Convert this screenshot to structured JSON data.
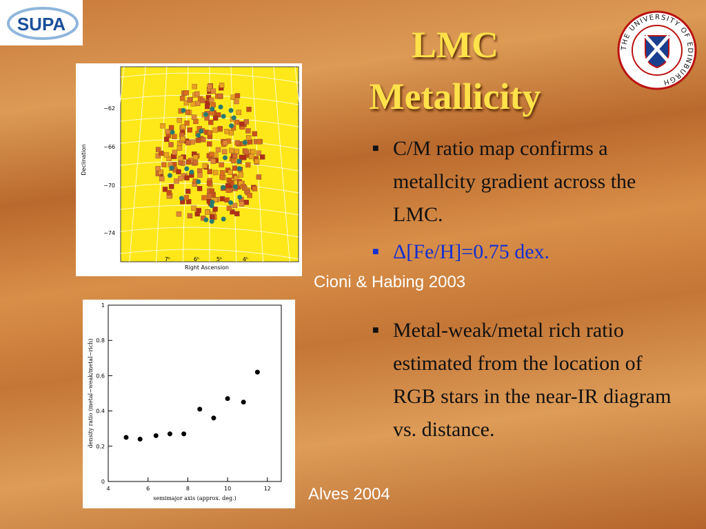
{
  "header": {
    "title_lines": [
      "LMC",
      "Metallicity"
    ]
  },
  "logos": {
    "left": "SUPA",
    "right_ring": "THE UNIVERSITY OF EDINBURGH"
  },
  "bullets_top": [
    "C/M ratio map confirms a metallcity gradient across the LMC.",
    "Δ[Fe/H]=0.75 dex."
  ],
  "credit_top": "Cioni & Habing 2003",
  "bullets_bottom": [
    "Metal-weak/metal rich ratio estimated from the location of RGB stars in the near-IR diagram vs. distance."
  ],
  "credit_bottom": "Alves 2004",
  "map_figure": {
    "y_label": "Declination",
    "x_label": "Right Ascension",
    "yticks": [
      "−62",
      "−66",
      "−70",
      "−74"
    ],
    "xticks": [
      "7ʰ",
      "6ʰ",
      "5ʰ",
      "4ʰ"
    ]
  },
  "chart_data": {
    "type": "scatter",
    "x_label": "semimajor axis (approx. deg.)",
    "y_label": "density ratio (metal−weak/metal−rich)",
    "x": [
      4.9,
      5.6,
      6.4,
      7.1,
      7.8,
      8.6,
      9.3,
      10.0,
      10.8,
      11.5
    ],
    "values": [
      0.25,
      0.24,
      0.26,
      0.27,
      0.27,
      0.41,
      0.36,
      0.47,
      0.45,
      0.62
    ],
    "color": "#000000",
    "xlim": [
      4,
      12.7
    ],
    "xticks": [
      4,
      6,
      8,
      10,
      12
    ],
    "ylim": [
      0,
      1
    ],
    "yticks": [
      0,
      0.2,
      0.4,
      0.6,
      0.8,
      1
    ]
  }
}
